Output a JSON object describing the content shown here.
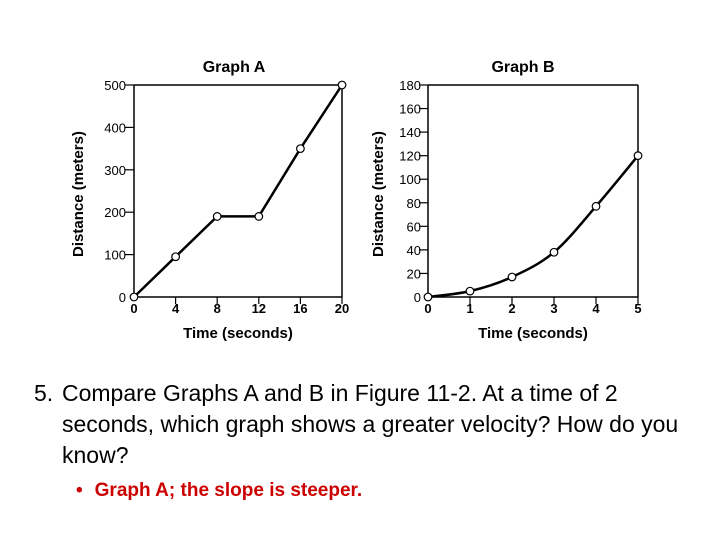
{
  "chart_data": [
    {
      "type": "line",
      "title": "Graph A",
      "xlabel": "Time (seconds)",
      "ylabel": "Distance (meters)",
      "xlim": [
        0,
        20
      ],
      "ylim": [
        0,
        500
      ],
      "x_ticks": [
        0,
        4,
        8,
        12,
        16,
        20
      ],
      "y_ticks": [
        0,
        100,
        200,
        300,
        400,
        500
      ],
      "x": [
        0,
        4,
        8,
        12,
        16,
        20
      ],
      "y": [
        0,
        95,
        190,
        190,
        350,
        500
      ],
      "markers": "open-circle",
      "grid": false
    },
    {
      "type": "line",
      "title": "Graph B",
      "xlabel": "Time (seconds)",
      "ylabel": "Distance (meters)",
      "xlim": [
        0,
        5
      ],
      "ylim": [
        0,
        180
      ],
      "x_ticks": [
        0,
        1,
        2,
        3,
        4,
        5
      ],
      "y_ticks": [
        0,
        20,
        40,
        60,
        80,
        100,
        120,
        140,
        160,
        180
      ],
      "x": [
        0,
        1,
        2,
        3,
        4,
        5
      ],
      "y": [
        0,
        5,
        17,
        38,
        77,
        120
      ],
      "markers": "open-circle",
      "grid": false
    }
  ],
  "question": {
    "number": "5.",
    "text": "Compare Graphs A and B in Figure 11-2. At a time of 2 seconds, which graph shows a greater velocity? How do you know?"
  },
  "answer": {
    "bullet": "•",
    "text": "Graph A; the slope is steeper.",
    "color": "#cc0000"
  }
}
